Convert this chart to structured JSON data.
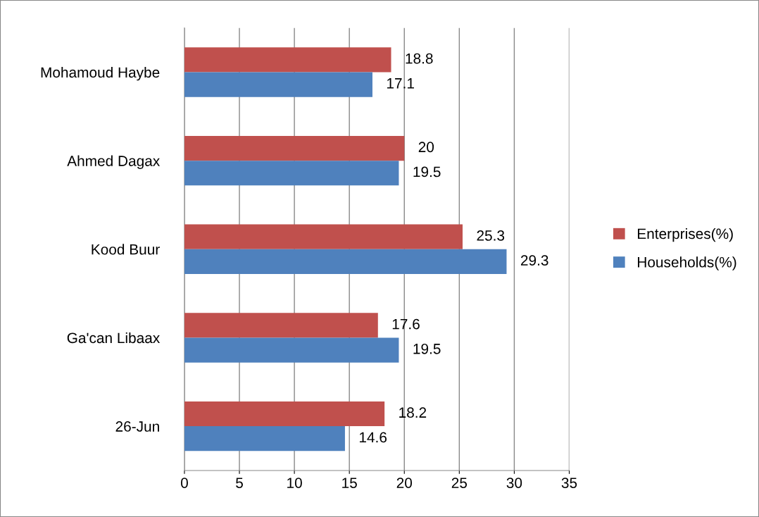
{
  "chart_data": {
    "type": "bar",
    "orientation": "horizontal",
    "categories": [
      "Mohamoud Haybe",
      "Ahmed Dagax",
      "Kood Buur",
      "Ga'can Libaax",
      "26-Jun"
    ],
    "series": [
      {
        "name": "Enterprises(%)",
        "color": "#c0504d",
        "values": [
          18.8,
          20,
          25.3,
          17.6,
          18.2
        ]
      },
      {
        "name": "Households(%)",
        "color": "#4f81bd",
        "values": [
          17.1,
          19.5,
          29.3,
          19.5,
          14.6
        ]
      }
    ],
    "xlim": [
      0,
      35
    ],
    "xticks": [
      0,
      5,
      10,
      15,
      20,
      25,
      30,
      35
    ],
    "grid": "x",
    "legend": "right",
    "data_labels": true
  }
}
